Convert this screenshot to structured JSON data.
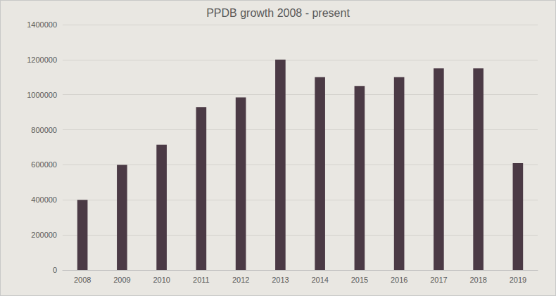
{
  "chart_data": {
    "type": "bar",
    "title": "PPDB growth 2008 - present",
    "categories": [
      "2008",
      "2009",
      "2010",
      "2011",
      "2012",
      "2013",
      "2014",
      "2015",
      "2016",
      "2017",
      "2018",
      "2019"
    ],
    "values": [
      400000,
      600000,
      715000,
      930000,
      985000,
      1200000,
      1100000,
      1050000,
      1100000,
      1150000,
      1150000,
      610000
    ],
    "color": "#4b3a45",
    "ylim": [
      0,
      1400000
    ],
    "yticks": [
      0,
      200000,
      400000,
      600000,
      800000,
      1000000,
      1200000,
      1400000
    ],
    "grid": true
  }
}
